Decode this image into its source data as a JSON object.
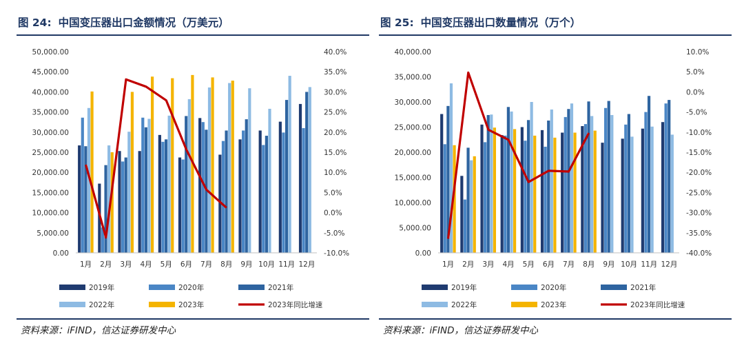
{
  "colors": {
    "s2019": "#1f3b70",
    "s2020": "#4a86c5",
    "s2021": "#2e64a0",
    "s2022": "#8ebbe3",
    "s2023": "#f4b400",
    "yoy": "#c00000",
    "title": "#1f3864"
  },
  "chart_data": [
    {
      "type": "bar",
      "title_num": "图 24:",
      "title": "中国变压器出口金额情况（万美元）",
      "source": "资料来源：iFIND，信达证券研发中心",
      "categories": [
        "1月",
        "2月",
        "3月",
        "4月",
        "5月",
        "6月",
        "7月",
        "8月",
        "9月",
        "10月",
        "11月",
        "12月"
      ],
      "ylim": [
        0,
        50000
      ],
      "y_ticks": [
        "0.00",
        "5,000.00",
        "10,000.00",
        "15,000.00",
        "20,000.00",
        "25,000.00",
        "30,000.00",
        "35,000.00",
        "40,000.00",
        "45,000.00",
        "50,000.00"
      ],
      "y2lim": [
        -10,
        40
      ],
      "y2_ticks": [
        "-10.0%",
        "-5.0%",
        "0.0%",
        "5.0%",
        "10.0%",
        "15.0%",
        "20.0%",
        "25.0%",
        "30.0%",
        "35.0%",
        "40.0%"
      ],
      "series": [
        {
          "name": "2019年",
          "key": "s2019",
          "values": [
            26700,
            17200,
            25300,
            25300,
            29300,
            23700,
            33500,
            24400,
            28200,
            30400,
            32600,
            37000
          ]
        },
        {
          "name": "2020年",
          "key": "s2020",
          "values": [
            33600,
            6300,
            22700,
            33600,
            27600,
            23200,
            32500,
            27800,
            30400,
            26800,
            29900,
            31000
          ]
        },
        {
          "name": "2021年",
          "key": "s2021",
          "values": [
            26500,
            21800,
            23700,
            31200,
            28200,
            34000,
            30600,
            30400,
            33200,
            29100,
            38000,
            40000
          ]
        },
        {
          "name": "2022年",
          "key": "s2022",
          "values": [
            36000,
            26700,
            30100,
            33300,
            34100,
            38200,
            41100,
            42200,
            40900,
            35800,
            44000,
            41200
          ]
        },
        {
          "name": "2023年",
          "key": "s2023",
          "values": [
            40100,
            25000,
            40000,
            43800,
            43400,
            44200,
            43600,
            42800,
            null,
            null,
            null,
            null
          ]
        }
      ],
      "line": {
        "name": "2023年同比增速",
        "key": "yoy",
        "values": [
          11.9,
          -6.2,
          33.1,
          31.3,
          27.9,
          15.7,
          5.7,
          1.2
        ]
      },
      "legend": [
        "2019年",
        "2020年",
        "2021年",
        "2022年",
        "2023年",
        "2023年同比增速"
      ]
    },
    {
      "type": "bar",
      "title_num": "图 25:",
      "title": "中国变压器出口数量情况（万个）",
      "source": "资料来源：iFIND，信达证券研发中心",
      "categories": [
        "1月",
        "2月",
        "3月",
        "4月",
        "5月",
        "6月",
        "7月",
        "8月",
        "9月",
        "10月",
        "11月",
        "12月"
      ],
      "ylim": [
        0,
        40000
      ],
      "y_ticks": [
        "0.00",
        "5,000.00",
        "10,000.00",
        "15,000.00",
        "20,000.00",
        "25,000.00",
        "30,000.00",
        "35,000.00",
        "40,000.00"
      ],
      "y2lim": [
        -40,
        10
      ],
      "y2_ticks": [
        "-40.0%",
        "-35.0%",
        "-30.0%",
        "-25.0%",
        "-20.0%",
        "-15.0%",
        "-10.0%",
        "-5.0%",
        "0.0%",
        "5.0%",
        "10.0%"
      ],
      "series": [
        {
          "name": "2019年",
          "key": "s2019",
          "values": [
            27600,
            15300,
            25500,
            23400,
            25000,
            24400,
            23900,
            25200,
            21900,
            22700,
            24700,
            26000
          ]
        },
        {
          "name": "2020年",
          "key": "s2020",
          "values": [
            21600,
            10600,
            22000,
            23300,
            22300,
            21100,
            27000,
            25600,
            28800,
            25500,
            28000,
            29700
          ]
        },
        {
          "name": "2021年",
          "key": "s2021",
          "values": [
            29200,
            20900,
            27400,
            29000,
            26400,
            26300,
            28600,
            30100,
            30200,
            27600,
            31200,
            30400
          ]
        },
        {
          "name": "2022年",
          "key": "s2022",
          "values": [
            33700,
            18400,
            27500,
            28100,
            30000,
            28500,
            29700,
            27200,
            27400,
            23100,
            25100,
            23500
          ]
        },
        {
          "name": "2023年",
          "key": "s2023",
          "values": [
            21400,
            19200,
            24900,
            24600,
            23300,
            22900,
            23900,
            24300,
            null,
            null,
            null,
            null
          ]
        }
      ],
      "line": {
        "name": "2023年同比增速",
        "key": "yoy",
        "values": [
          -36.5,
          4.8,
          -9.4,
          -11.9,
          -22.4,
          -19.6,
          -19.8,
          -10.2
        ]
      },
      "legend": [
        "2019年",
        "2020年",
        "2021年",
        "2022年",
        "2023年",
        "2023年同比增速"
      ]
    }
  ]
}
